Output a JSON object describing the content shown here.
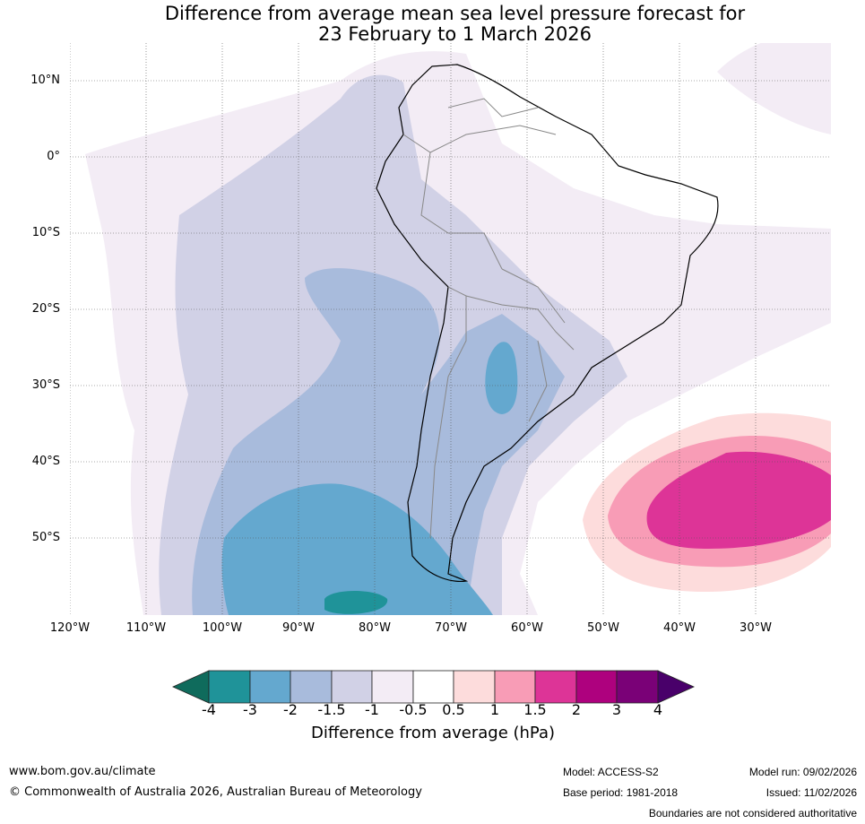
{
  "title": {
    "line1": "Difference from average mean sea level pressure forecast for",
    "line2": "23 February to 1 March 2026"
  },
  "latitude_labels": [
    "10°N",
    "0°",
    "10°S",
    "20°S",
    "30°S",
    "40°S",
    "50°S"
  ],
  "longitude_labels": [
    "120°W",
    "110°W",
    "100°W",
    "90°W",
    "80°W",
    "70°W",
    "60°W",
    "50°W",
    "40°W",
    "30°W"
  ],
  "colorbar": {
    "label": "Difference from average (hPa)",
    "ticks": [
      "-4",
      "-3",
      "-2",
      "-1.5",
      "-1",
      "-0.5",
      "0.5",
      "1",
      "1.5",
      "2",
      "3",
      "4"
    ],
    "colors": [
      "#0f6b5c",
      "#1f9399",
      "#64a8cf",
      "#a8bbdc",
      "#d1d1e6",
      "#f3ecf5",
      "#ffffff",
      "#fddcdc",
      "#f89cb6",
      "#dd3497",
      "#ae017e",
      "#7a0177",
      "#49006a"
    ]
  },
  "footer": {
    "website": "www.bom.gov.au/climate",
    "copyright": "© Commonwealth of Australia 2026, Australian Bureau of Meteorology",
    "model": "Model: ACCESS-S2",
    "base_period": "Base period: 1981-2018",
    "model_run": "Model run: 09/02/2026",
    "issued": "Issued: 11/02/2026",
    "disclaimer": "Boundaries are not considered authoritative"
  }
}
